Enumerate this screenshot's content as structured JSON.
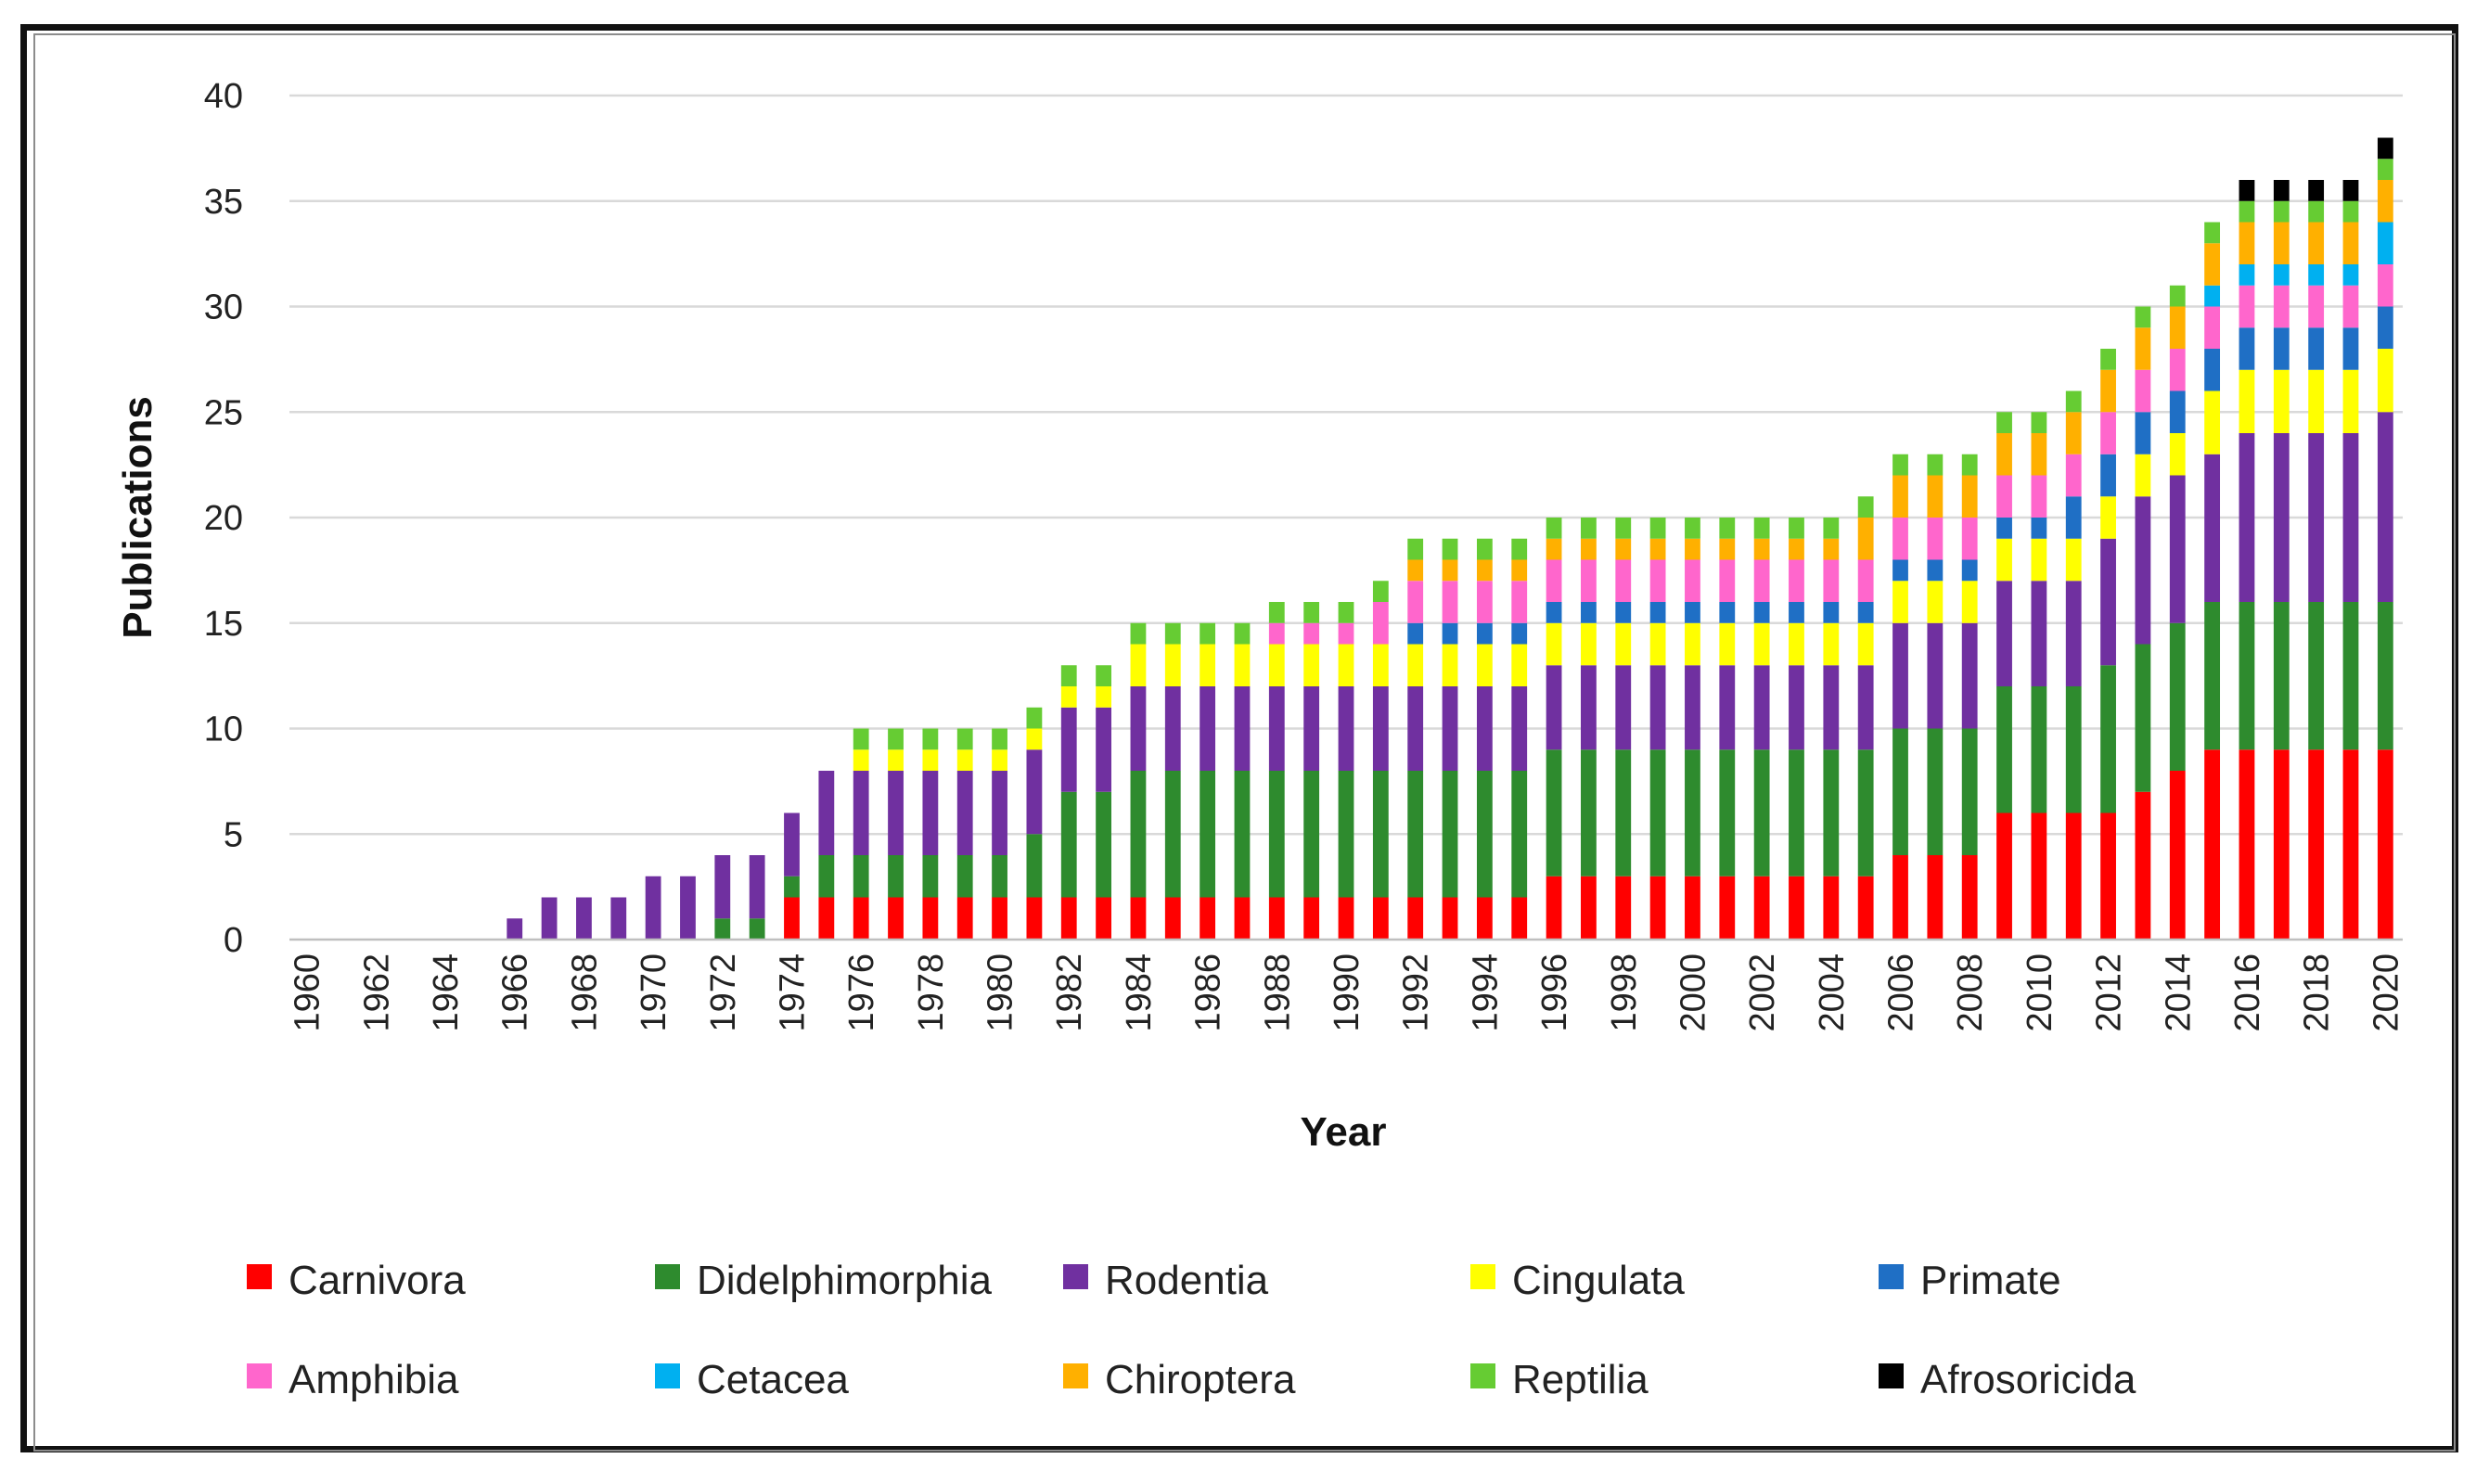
{
  "chart_data": {
    "type": "bar",
    "stacked": true,
    "title": "",
    "xlabel": "Year",
    "ylabel": "Publications",
    "ylim": [
      0,
      40
    ],
    "yticks": [
      0,
      5,
      10,
      15,
      20,
      25,
      30,
      35,
      40
    ],
    "grid": "horizontal",
    "legend_position": "bottom",
    "categories": [
      "1960",
      "1961",
      "1962",
      "1963",
      "1964",
      "1965",
      "1966",
      "1967",
      "1968",
      "1969",
      "1970",
      "1971",
      "1972",
      "1973",
      "1974",
      "1975",
      "1976",
      "1977",
      "1978",
      "1979",
      "1980",
      "1981",
      "1982",
      "1983",
      "1984",
      "1985",
      "1986",
      "1987",
      "1988",
      "1989",
      "1990",
      "1991",
      "1992",
      "1993",
      "1994",
      "1995",
      "1996",
      "1997",
      "1998",
      "1999",
      "2000",
      "2001",
      "2002",
      "2003",
      "2004",
      "2005",
      "2006",
      "2007",
      "2008",
      "2009",
      "2010",
      "2011",
      "2012",
      "2013",
      "2014",
      "2015",
      "2016",
      "2017",
      "2018",
      "2019",
      "2020"
    ],
    "xtick_labels": [
      "1960",
      "1962",
      "1964",
      "1966",
      "1968",
      "1970",
      "1972",
      "1974",
      "1976",
      "1978",
      "1980",
      "1982",
      "1984",
      "1986",
      "1988",
      "1990",
      "1992",
      "1994",
      "1996",
      "1998",
      "2000",
      "2002",
      "2004",
      "2006",
      "2008",
      "2010",
      "2012",
      "2014",
      "2016",
      "2018",
      "2020"
    ],
    "series": [
      {
        "name": "Carnivora",
        "color": "#ff0000",
        "values": [
          0,
          0,
          0,
          0,
          0,
          0,
          0,
          0,
          0,
          0,
          0,
          0,
          0,
          0,
          2,
          2,
          2,
          2,
          2,
          2,
          2,
          2,
          2,
          2,
          2,
          2,
          2,
          2,
          2,
          2,
          2,
          2,
          2,
          2,
          2,
          2,
          3,
          3,
          3,
          3,
          3,
          3,
          3,
          3,
          3,
          3,
          4,
          4,
          4,
          6,
          6,
          6,
          6,
          7,
          8,
          9,
          9,
          9,
          9,
          9,
          9
        ]
      },
      {
        "name": "Didelphimorphia",
        "color": "#2e8b2e",
        "values": [
          0,
          0,
          0,
          0,
          0,
          0,
          0,
          0,
          0,
          0,
          0,
          0,
          1,
          1,
          1,
          2,
          2,
          2,
          2,
          2,
          2,
          3,
          5,
          5,
          6,
          6,
          6,
          6,
          6,
          6,
          6,
          6,
          6,
          6,
          6,
          6,
          6,
          6,
          6,
          6,
          6,
          6,
          6,
          6,
          6,
          6,
          6,
          6,
          6,
          6,
          6,
          6,
          7,
          7,
          7,
          7,
          7,
          7,
          7,
          7,
          7
        ]
      },
      {
        "name": "Rodentia",
        "color": "#7030a0",
        "values": [
          0,
          0,
          0,
          0,
          0,
          0,
          1,
          2,
          2,
          2,
          3,
          3,
          3,
          3,
          3,
          4,
          4,
          4,
          4,
          4,
          4,
          4,
          4,
          4,
          4,
          4,
          4,
          4,
          4,
          4,
          4,
          4,
          4,
          4,
          4,
          4,
          4,
          4,
          4,
          4,
          4,
          4,
          4,
          4,
          4,
          4,
          5,
          5,
          5,
          5,
          5,
          5,
          6,
          7,
          7,
          7,
          8,
          8,
          8,
          8,
          9
        ]
      },
      {
        "name": "Cingulata",
        "color": "#ffff00",
        "values": [
          0,
          0,
          0,
          0,
          0,
          0,
          0,
          0,
          0,
          0,
          0,
          0,
          0,
          0,
          0,
          0,
          1,
          1,
          1,
          1,
          1,
          1,
          1,
          1,
          2,
          2,
          2,
          2,
          2,
          2,
          2,
          2,
          2,
          2,
          2,
          2,
          2,
          2,
          2,
          2,
          2,
          2,
          2,
          2,
          2,
          2,
          2,
          2,
          2,
          2,
          2,
          2,
          2,
          2,
          2,
          3,
          3,
          3,
          3,
          3,
          3
        ]
      },
      {
        "name": "Primate",
        "color": "#1f6fc5",
        "values": [
          0,
          0,
          0,
          0,
          0,
          0,
          0,
          0,
          0,
          0,
          0,
          0,
          0,
          0,
          0,
          0,
          0,
          0,
          0,
          0,
          0,
          0,
          0,
          0,
          0,
          0,
          0,
          0,
          0,
          0,
          0,
          0,
          1,
          1,
          1,
          1,
          1,
          1,
          1,
          1,
          1,
          1,
          1,
          1,
          1,
          1,
          1,
          1,
          1,
          1,
          1,
          2,
          2,
          2,
          2,
          2,
          2,
          2,
          2,
          2,
          2
        ]
      },
      {
        "name": "Amphibia",
        "color": "#ff66cc",
        "values": [
          0,
          0,
          0,
          0,
          0,
          0,
          0,
          0,
          0,
          0,
          0,
          0,
          0,
          0,
          0,
          0,
          0,
          0,
          0,
          0,
          0,
          0,
          0,
          0,
          0,
          0,
          0,
          0,
          1,
          1,
          1,
          2,
          2,
          2,
          2,
          2,
          2,
          2,
          2,
          2,
          2,
          2,
          2,
          2,
          2,
          2,
          2,
          2,
          2,
          2,
          2,
          2,
          2,
          2,
          2,
          2,
          2,
          2,
          2,
          2,
          2
        ]
      },
      {
        "name": "Cetacea",
        "color": "#00b0f0",
        "values": [
          0,
          0,
          0,
          0,
          0,
          0,
          0,
          0,
          0,
          0,
          0,
          0,
          0,
          0,
          0,
          0,
          0,
          0,
          0,
          0,
          0,
          0,
          0,
          0,
          0,
          0,
          0,
          0,
          0,
          0,
          0,
          0,
          0,
          0,
          0,
          0,
          0,
          0,
          0,
          0,
          0,
          0,
          0,
          0,
          0,
          0,
          0,
          0,
          0,
          0,
          0,
          0,
          0,
          0,
          0,
          1,
          1,
          1,
          1,
          1,
          2
        ]
      },
      {
        "name": "Chiroptera",
        "color": "#ffb000",
        "values": [
          0,
          0,
          0,
          0,
          0,
          0,
          0,
          0,
          0,
          0,
          0,
          0,
          0,
          0,
          0,
          0,
          0,
          0,
          0,
          0,
          0,
          0,
          0,
          0,
          0,
          0,
          0,
          0,
          0,
          0,
          0,
          0,
          1,
          1,
          1,
          1,
          1,
          1,
          1,
          1,
          1,
          1,
          1,
          1,
          1,
          2,
          2,
          2,
          2,
          2,
          2,
          2,
          2,
          2,
          2,
          2,
          2,
          2,
          2,
          2,
          2
        ]
      },
      {
        "name": "Reptilia",
        "color": "#66cc33",
        "values": [
          0,
          0,
          0,
          0,
          0,
          0,
          0,
          0,
          0,
          0,
          0,
          0,
          0,
          0,
          0,
          0,
          1,
          1,
          1,
          1,
          1,
          1,
          1,
          1,
          1,
          1,
          1,
          1,
          1,
          1,
          1,
          1,
          1,
          1,
          1,
          1,
          1,
          1,
          1,
          1,
          1,
          1,
          1,
          1,
          1,
          1,
          1,
          1,
          1,
          1,
          1,
          1,
          1,
          1,
          1,
          1,
          1,
          1,
          1,
          1,
          1
        ]
      },
      {
        "name": "Afrosoricida",
        "color": "#000000",
        "values": [
          0,
          0,
          0,
          0,
          0,
          0,
          0,
          0,
          0,
          0,
          0,
          0,
          0,
          0,
          0,
          0,
          0,
          0,
          0,
          0,
          0,
          0,
          0,
          0,
          0,
          0,
          0,
          0,
          0,
          0,
          0,
          0,
          0,
          0,
          0,
          0,
          0,
          0,
          0,
          0,
          0,
          0,
          0,
          0,
          0,
          0,
          0,
          0,
          0,
          0,
          0,
          0,
          0,
          0,
          0,
          0,
          1,
          1,
          1,
          1,
          1
        ]
      }
    ]
  }
}
